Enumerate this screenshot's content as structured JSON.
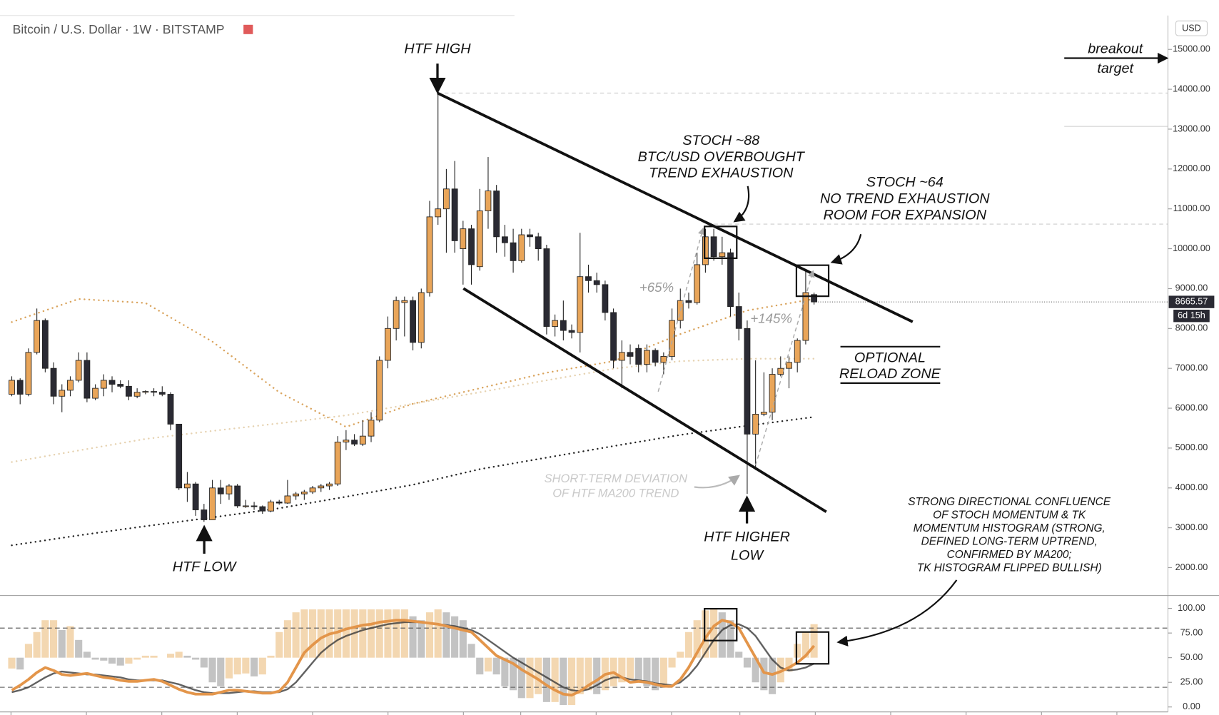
{
  "chart_data": [
    {
      "type": "candlestick",
      "title": "Bitcoin / U.S. Dollar · 1W · BITSTAMP",
      "currency": "USD",
      "up_color": "#e9a559",
      "down_color": "#2a2a33",
      "open": [
        6350,
        6700,
        6350,
        7400,
        8200,
        7000,
        6300,
        6450,
        6700,
        7200,
        6250,
        6500,
        6700,
        6600,
        6550,
        6300,
        6400,
        6420,
        6400,
        6350,
        5600,
        4000,
        4100,
        3450,
        3200,
        4000,
        3850,
        4050,
        3550,
        3550,
        3530,
        3420,
        3650,
        3620,
        3800,
        3850,
        3900,
        4000,
        4050,
        4100,
        5150,
        5200,
        5100,
        5300,
        5700,
        7200,
        8000,
        8650,
        8700,
        7650,
        8900,
        10800,
        11000,
        11500,
        10000,
        10500,
        9550,
        10950,
        11450,
        10300,
        10150,
        9700,
        10350,
        10300,
        10000,
        8050,
        8200,
        7950,
        7900,
        9300,
        9200,
        9100,
        8400,
        7200,
        7400,
        7500,
        7100,
        7450,
        7150,
        7300,
        8200,
        8700,
        8650,
        9600,
        10300,
        9800,
        9900,
        8550,
        8000,
        5350,
        5850,
        5900,
        6850,
        7000,
        7150,
        7700,
        8850
      ],
      "high": [
        6800,
        6750,
        7500,
        8500,
        8250,
        7150,
        6600,
        6800,
        7400,
        7400,
        6600,
        6850,
        6800,
        6700,
        6700,
        6500,
        6450,
        6500,
        6550,
        6400,
        5600,
        4400,
        4150,
        3600,
        4200,
        4200,
        4100,
        4100,
        3700,
        3650,
        3560,
        3700,
        3700,
        4200,
        3900,
        3950,
        4050,
        4100,
        4150,
        5300,
        5450,
        5350,
        5700,
        5900,
        7300,
        8300,
        8800,
        8800,
        8800,
        9000,
        11200,
        13880,
        12000,
        12200,
        10700,
        10600,
        11500,
        12300,
        11600,
        10600,
        10500,
        10500,
        10500,
        10400,
        10100,
        8350,
        8700,
        8100,
        10400,
        9600,
        9400,
        9200,
        8500,
        7700,
        7600,
        7600,
        7600,
        7500,
        7400,
        8500,
        9000,
        8900,
        9900,
        10500,
        10500,
        10300,
        10000,
        8900,
        8200,
        7200,
        6900,
        7000,
        7300,
        7300,
        7750,
        9450,
        8900
      ],
      "low": [
        6300,
        6100,
        6300,
        7350,
        6900,
        6100,
        5900,
        6300,
        6650,
        6150,
        6200,
        6300,
        6400,
        6500,
        6200,
        6250,
        6350,
        6300,
        6300,
        5450,
        3950,
        3650,
        3300,
        3150,
        3200,
        3600,
        3700,
        3500,
        3500,
        3450,
        3350,
        3390,
        3580,
        3600,
        3700,
        3700,
        3850,
        3900,
        3950,
        4050,
        4950,
        5050,
        5050,
        5150,
        5650,
        7000,
        7700,
        7800,
        7450,
        7500,
        8800,
        10600,
        9900,
        9900,
        9100,
        9100,
        9450,
        10500,
        9900,
        9800,
        9400,
        9650,
        10050,
        9700,
        7850,
        7800,
        7700,
        7750,
        7400,
        8900,
        8900,
        8200,
        7000,
        6500,
        7100,
        6900,
        6900,
        7050,
        6850,
        7200,
        8000,
        8500,
        8600,
        9400,
        9700,
        9600,
        8300,
        7700,
        3850,
        4450,
        5800,
        5700,
        6800,
        6500,
        6900,
        7600,
        8600
      ],
      "close": [
        6700,
        6350,
        7400,
        8200,
        7000,
        6300,
        6450,
        6700,
        7200,
        6250,
        6500,
        6700,
        6600,
        6550,
        6300,
        6400,
        6420,
        6400,
        6350,
        5600,
        4000,
        4100,
        3450,
        3200,
        4000,
        3850,
        4050,
        3550,
        3550,
        3530,
        3420,
        3650,
        3620,
        3800,
        3850,
        3900,
        4000,
        4050,
        4100,
        5150,
        5200,
        5100,
        5300,
        5700,
        7200,
        8000,
        8700,
        8700,
        7650,
        8900,
        10800,
        11000,
        11500,
        10200,
        10500,
        9600,
        10950,
        11450,
        10300,
        10150,
        9700,
        10350,
        10300,
        10000,
        8050,
        8200,
        7950,
        7900,
        9300,
        9200,
        9100,
        8400,
        7200,
        7400,
        7300,
        7100,
        7450,
        7150,
        7300,
        8200,
        8700,
        8650,
        9600,
        10300,
        9800,
        9900,
        8550,
        8000,
        5350,
        5850,
        5900,
        6850,
        7000,
        7150,
        7700,
        8900,
        8665.57
      ],
      "moving_averages": [
        {
          "color": "#d9a35c",
          "x": [
            0,
            8,
            16,
            24,
            32,
            40,
            48,
            56,
            64,
            72,
            80,
            88,
            96
          ],
          "values": [
            8160,
            8740,
            8640,
            7670,
            6400,
            5530,
            6110,
            6500,
            6890,
            7180,
            7860,
            8450,
            8740
          ]
        },
        {
          "color": "#e6d2b0",
          "x": [
            0,
            8,
            16,
            24,
            32,
            40,
            48,
            56,
            64,
            72,
            80,
            88,
            96
          ],
          "values": [
            4650,
            4940,
            5230,
            5430,
            5620,
            5820,
            6110,
            6400,
            6700,
            6990,
            7180,
            7240,
            7240
          ]
        },
        {
          "color": "#222222",
          "x": [
            0,
            8,
            16,
            24,
            32,
            40,
            48,
            56,
            64,
            72,
            80,
            88,
            96
          ],
          "values": [
            2560,
            2810,
            3040,
            3260,
            3490,
            3780,
            4080,
            4470,
            4760,
            5050,
            5330,
            5560,
            5780
          ]
        }
      ],
      "ylim": [
        1300,
        15850
      ],
      "yticks": [
        {
          "value": 2000,
          "label": "2000.00"
        },
        {
          "value": 3000,
          "label": "3000.00"
        },
        {
          "value": 4000,
          "label": "4000.00"
        },
        {
          "value": 5000,
          "label": "5000.00"
        },
        {
          "value": 6000,
          "label": "6000.00"
        },
        {
          "value": 7000,
          "label": "7000.00"
        },
        {
          "value": 8000,
          "label": "8000.00"
        },
        {
          "value": 9000,
          "label": "9000.00"
        },
        {
          "value": 10000,
          "label": "10000.00"
        },
        {
          "value": 11000,
          "label": "11000.00"
        },
        {
          "value": 12000,
          "label": "12000.00"
        },
        {
          "value": 13000,
          "label": "13000.00"
        },
        {
          "value": 14000,
          "label": "14000.00"
        },
        {
          "value": 15000,
          "label": "15000.00"
        }
      ],
      "last_price": 8665.57,
      "countdown": "6d 15h",
      "annotations": [
        {
          "lines": [
            "HTF HIGH"
          ]
        },
        {
          "lines": [
            "STOCH ~88",
            "BTC/USD OVERBOUGHT",
            "TREND EXHAUSTION"
          ]
        },
        {
          "lines": [
            "STOCH ~64",
            "NO TREND EXHAUSTION",
            "ROOM FOR EXPANSION"
          ]
        },
        {
          "lines": [
            "breakout",
            "target"
          ]
        },
        {
          "lines": [
            "+65%"
          ]
        },
        {
          "lines": [
            "+145%"
          ]
        },
        {
          "lines": [
            "OPTIONAL",
            "RELOAD ZONE"
          ]
        },
        {
          "lines": [
            "SHORT-TERM DEVIATION",
            "OF HTF MA200 TREND"
          ]
        },
        {
          "lines": [
            "HTF LOW"
          ]
        },
        {
          "lines": [
            "HTF HIGHER",
            "LOW"
          ]
        },
        {
          "lines": [
            "STRONG DIRECTIONAL CONFLUENCE",
            "OF STOCH MOMENTUM & TK",
            "MOMENTUM HISTOGRAM (STRONG,",
            "DEFINED LONG-TERM UPTREND,",
            "CONFIRMED BY MA200;",
            "TK HISTOGRAM FLIPPED BULLISH)"
          ]
        }
      ]
    },
    {
      "type": "stochastic",
      "ylim": [
        -5,
        113
      ],
      "yticks": [
        {
          "value": 0,
          "label": "0.00"
        },
        {
          "value": 25,
          "label": "25.00"
        },
        {
          "value": 50,
          "label": "50.00"
        },
        {
          "value": 75,
          "label": "75.00"
        },
        {
          "value": 100,
          "label": "100.00"
        }
      ],
      "levels": [
        80,
        20
      ],
      "histogram": {
        "base": 50,
        "up_color": "#f2d3a8",
        "down_color": "#bdbdbd",
        "values": [
          39,
          38,
          64,
          76,
          88,
          88,
          78,
          82,
          68,
          56,
          48,
          47,
          44,
          42,
          44,
          48,
          52,
          52,
          50,
          54,
          56,
          52,
          48,
          40,
          25,
          21,
          29,
          33,
          34,
          31,
          33,
          52,
          76,
          88,
          96,
          99,
          99,
          99,
          99,
          99,
          99,
          99,
          99,
          99,
          99,
          99,
          99,
          99,
          92,
          88,
          96,
          99,
          96,
          92,
          88,
          64,
          33,
          36,
          33,
          21,
          17,
          9,
          9,
          13,
          5,
          5,
          2,
          2,
          13,
          17,
          13,
          17,
          21,
          25,
          29,
          25,
          21,
          17,
          21,
          40,
          56,
          76,
          88,
          98,
          99,
          96,
          88,
          56,
          40,
          25,
          17,
          13,
          25,
          36,
          64,
          76,
          84
        ]
      },
      "series": [
        {
          "color": "#e3954a",
          "values": [
            17,
            22,
            28,
            35,
            40,
            37,
            33,
            32,
            33,
            34,
            32,
            30,
            29,
            27,
            26,
            26,
            27,
            28,
            26,
            22,
            18,
            15,
            13,
            13,
            13,
            15,
            17,
            17,
            16,
            15,
            14,
            14,
            16,
            25,
            40,
            55,
            63,
            70,
            74,
            76,
            79,
            81,
            83,
            84,
            86,
            87,
            88,
            88,
            87,
            86,
            85,
            84,
            82,
            80,
            78,
            76,
            68,
            60,
            52,
            48,
            44,
            38,
            33,
            28,
            22,
            17,
            13,
            12,
            16,
            22,
            27,
            33,
            35,
            30,
            25,
            26,
            25,
            23,
            21,
            21,
            28,
            40,
            55,
            70,
            82,
            88,
            86,
            80,
            65,
            50,
            35,
            33,
            36,
            40,
            45,
            52,
            62
          ]
        },
        {
          "color": "#3a3a3a",
          "values": [
            15,
            17,
            20,
            25,
            30,
            34,
            36,
            35,
            34,
            33,
            33,
            32,
            31,
            30,
            28,
            27,
            27,
            27,
            27,
            25,
            23,
            20,
            17,
            15,
            14,
            14,
            14,
            15,
            16,
            16,
            15,
            15,
            15,
            18,
            25,
            35,
            45,
            55,
            62,
            68,
            72,
            75,
            78,
            80,
            82,
            84,
            85,
            86,
            86,
            86,
            85,
            84,
            83,
            82,
            80,
            78,
            74,
            68,
            62,
            56,
            50,
            45,
            40,
            35,
            30,
            25,
            20,
            17,
            16,
            18,
            22,
            27,
            30,
            30,
            28,
            27,
            26,
            24,
            23,
            22,
            25,
            32,
            42,
            55,
            68,
            78,
            83,
            84,
            80,
            72,
            60,
            48,
            40,
            37,
            38,
            40,
            44
          ]
        }
      ]
    }
  ]
}
